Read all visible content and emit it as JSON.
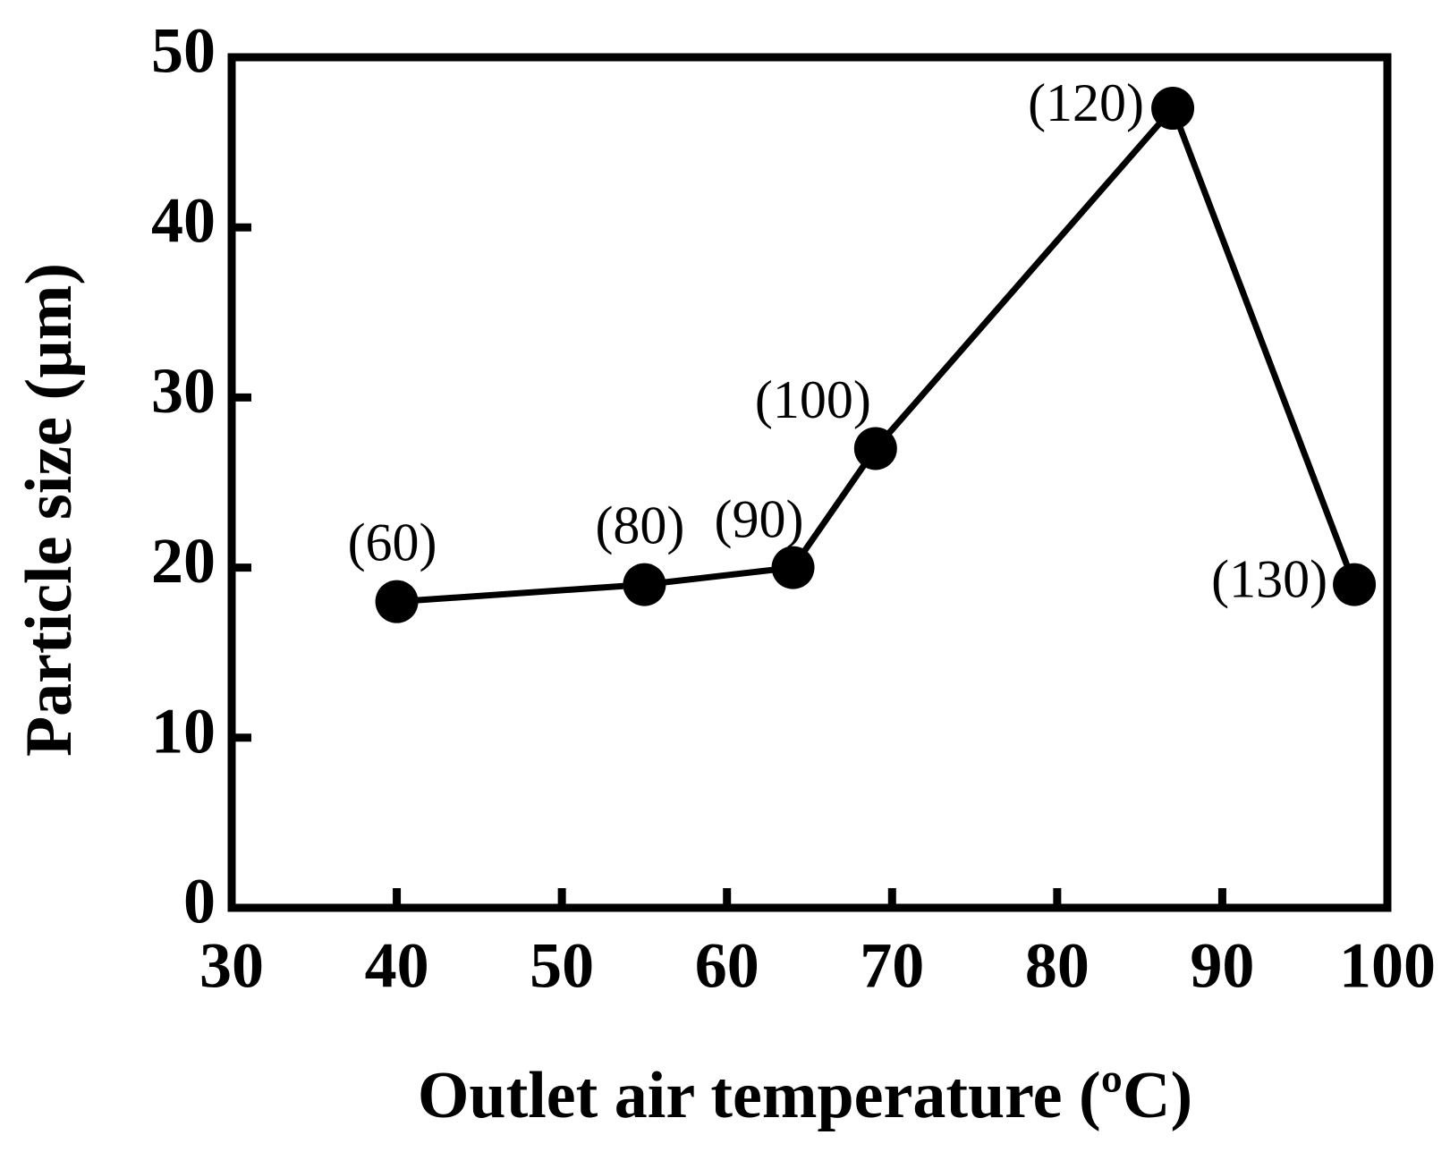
{
  "chart_data": {
    "type": "line",
    "x_label": "Outlet air temperature (ºC)",
    "y_label": "Particle size (µm)",
    "series": [
      {
        "x": [
          40,
          55,
          64,
          69,
          87,
          98
        ],
        "values": [
          18,
          19,
          20,
          27,
          47,
          19
        ],
        "color": "#000000",
        "point_labels": [
          "(60)",
          "(80)",
          "(90)",
          "(100)",
          "(120)",
          "(130)"
        ]
      }
    ],
    "xlim": [
      30,
      100
    ],
    "xticks": [
      30,
      40,
      50,
      60,
      70,
      80,
      90,
      100
    ],
    "ylim": [
      0,
      50
    ],
    "yticks": [
      0,
      10,
      20,
      30,
      40,
      50
    ]
  }
}
